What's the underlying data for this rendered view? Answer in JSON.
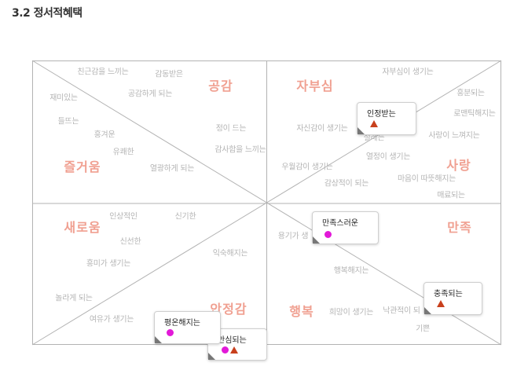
{
  "title": "3.2 정서적혜택",
  "categories": {
    "gonggam": "공감",
    "jabusim": "자부심",
    "jeulgeoum": "즐거움",
    "sarang": "사랑",
    "saeroum": "새로움",
    "manjok": "만족",
    "anjeong": "안정감",
    "haengbok": "행복"
  },
  "words": {
    "w01": "친근감을 느끼는",
    "w02": "감동받은",
    "w03": "재미있는",
    "w04": "공감하게 되는",
    "w05": "들뜨는",
    "w06": "흥겨운",
    "w07": "유쾌한",
    "w08": "정이 드는",
    "w09": "감사함을 느끼는",
    "w10": "열광하게 되는",
    "w11": "자부심이 생기는",
    "w12": "흥분되는",
    "w13": "로맨틱해지는",
    "w14": "자신감이 생기는",
    "w15": "설레는",
    "w16": "사랑이 느껴지는",
    "w17": "열정이 생기는",
    "w18": "우월감이 생기는",
    "w19": "마음이 따뜻해지는",
    "w20": "감상적이 되는",
    "w21": "매료되는",
    "w22": "인상적인",
    "w23": "신기한",
    "w24": "신선한",
    "w25": "익숙해지는",
    "w26": "흥미가 생기는",
    "w27": "용기가 생",
    "w28": "행복해지는",
    "w29": "놀라게 되는",
    "w30": "여유가 생기는",
    "w31": "희망이 생기는",
    "w32": "낙관적이 되",
    "w33": "기쁜"
  },
  "cards": {
    "c1": "인정받는",
    "c2": "만족스러운",
    "c3": "충족되는",
    "c4": "평온해지는",
    "c5": "안심되는"
  },
  "colors": {
    "category_text": "#f0a091",
    "word_text": "#b5b5b5",
    "dot_magenta": "#e219d8",
    "triangle_red": "#c8401d",
    "frame_line": "#b3b3b3"
  },
  "marker_icons": [
    "magenta-dot-icon",
    "red-triangle-icon"
  ]
}
